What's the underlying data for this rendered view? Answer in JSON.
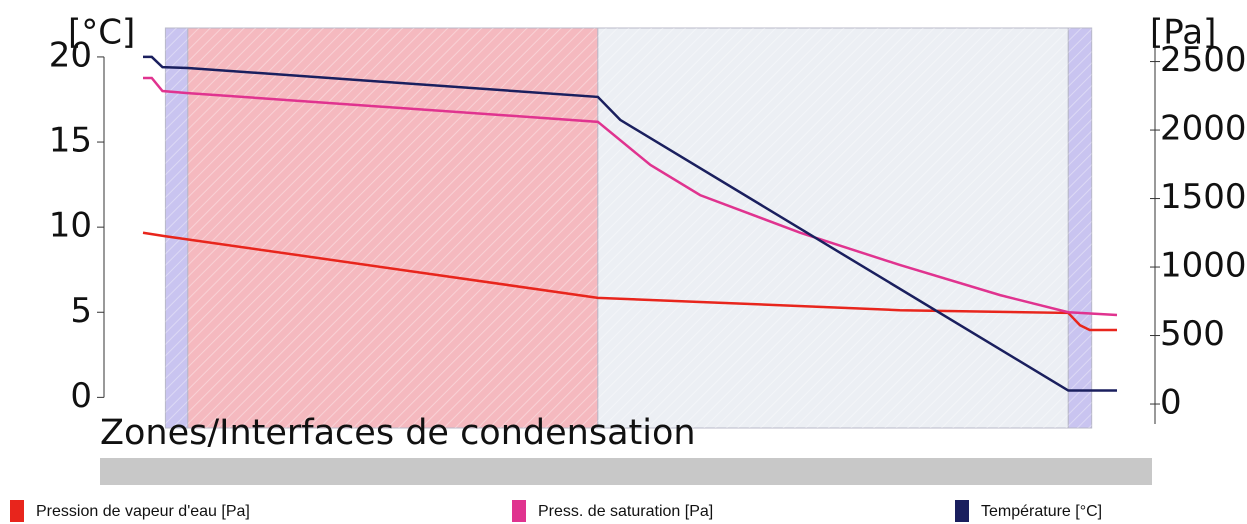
{
  "chart_data": {
    "type": "line",
    "y_label": "[°C]",
    "y2_label": "[Pa]",
    "annotation": "Zones/Interfaces de condensation",
    "xlim": [
      0,
      100
    ],
    "ylim": [
      -1.8,
      21.7
    ],
    "yticks": [
      0,
      5,
      10,
      15,
      20
    ],
    "y2lim": [
      -175,
      2745
    ],
    "y2ticks": [
      0,
      500,
      1000,
      1500,
      2000,
      2500
    ],
    "zones": [
      {
        "x": [
          2.3,
          4.6
        ],
        "color": "#c9c4f0"
      },
      {
        "x": [
          4.6,
          46.7
        ],
        "color": "#f5b9bf"
      },
      {
        "x": [
          46.7,
          95.0
        ],
        "color": "#eceff4"
      },
      {
        "x": [
          95.0,
          97.4
        ],
        "color": "#c9c4f0"
      }
    ],
    "series": [
      {
        "name": "Pression de vapeur d'eau [Pa]",
        "color": "#e8251c",
        "axis": "y2",
        "x": [
          0,
          2.3,
          46.7,
          57.2,
          77.7,
          95.0,
          96.2,
          97.2,
          100
        ],
        "values": [
          1250,
          1225,
          775,
          745,
          685,
          665,
          575,
          540,
          540
        ]
      },
      {
        "name": "Press. de saturation [Pa]",
        "color": "#e0338f",
        "axis": "y2",
        "x": [
          0,
          0.9,
          2.0,
          4.6,
          46.7,
          52.1,
          57.2,
          67.5,
          77.7,
          88.0,
          95.0,
          100
        ],
        "values": [
          2380,
          2380,
          2285,
          2270,
          2060,
          1745,
          1525,
          1250,
          1015,
          795,
          670,
          650
        ]
      },
      {
        "name": "Température [°C]",
        "color": "#1a1f5e",
        "x": [
          0,
          0.9,
          2.0,
          4.6,
          46.7,
          49.0,
          95.0,
          100
        ],
        "values": [
          20.0,
          20.0,
          19.4,
          19.35,
          17.65,
          16.3,
          0.4,
          0.4
        ]
      }
    ]
  }
}
